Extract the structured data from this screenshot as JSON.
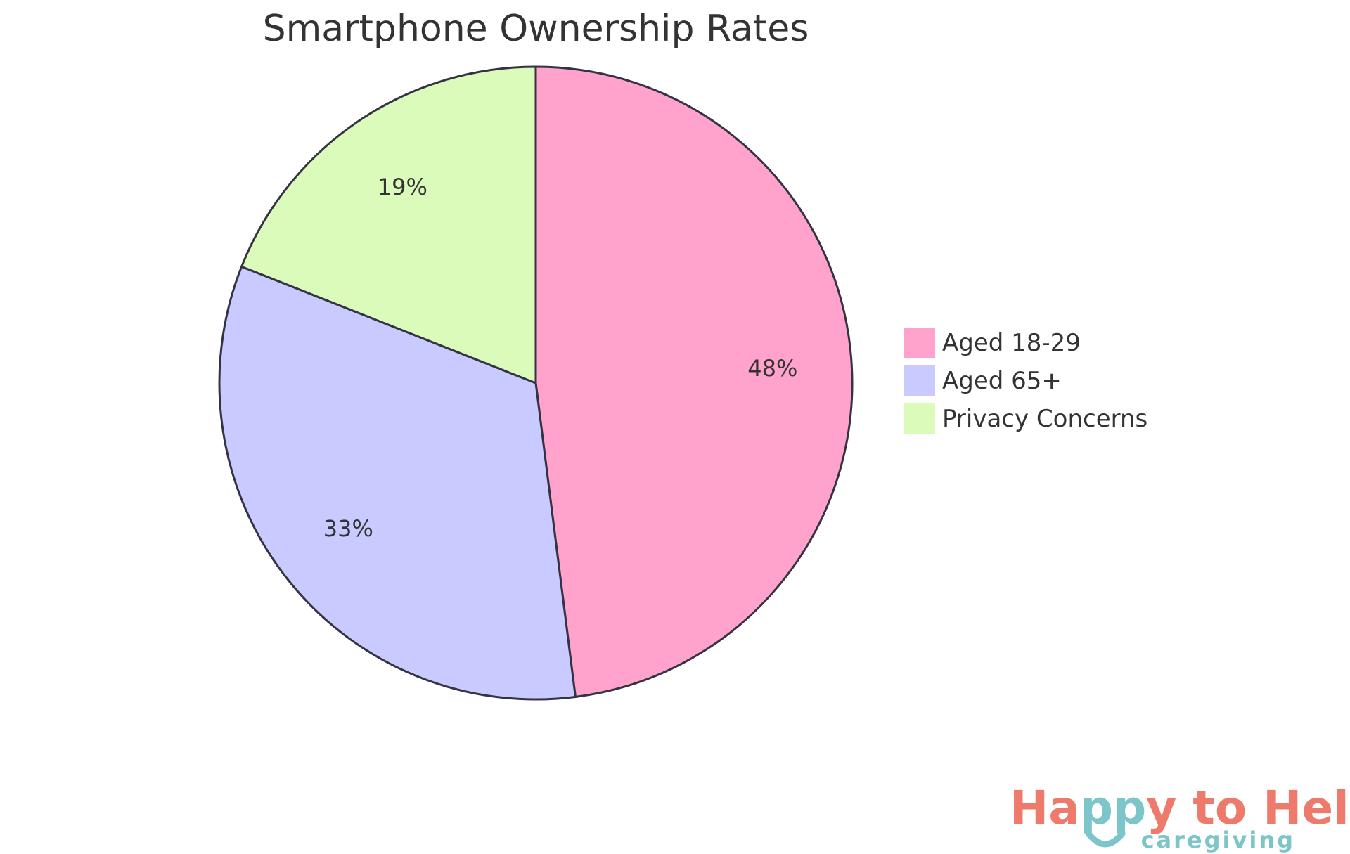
{
  "chart_data": {
    "type": "pie",
    "title": "Smartphone Ownership Rates",
    "legend_position": "right",
    "slices": [
      {
        "label": "Aged 18-29",
        "value": 48,
        "display": "48%",
        "color": "#FFA3CC"
      },
      {
        "label": "Aged 65+",
        "value": 33,
        "display": "33%",
        "color": "#C9CAFF"
      },
      {
        "label": "Privacy Concerns",
        "value": 19,
        "display": "19%",
        "color": "#DAFBB9"
      }
    ]
  },
  "logo": {
    "line1_part1": "Ha",
    "line1_part2": "pp",
    "line1_part3": "y to Help",
    "line2": "caregiving",
    "colors": {
      "coral": "#EE7A6B",
      "teal": "#7CC6C9"
    }
  }
}
